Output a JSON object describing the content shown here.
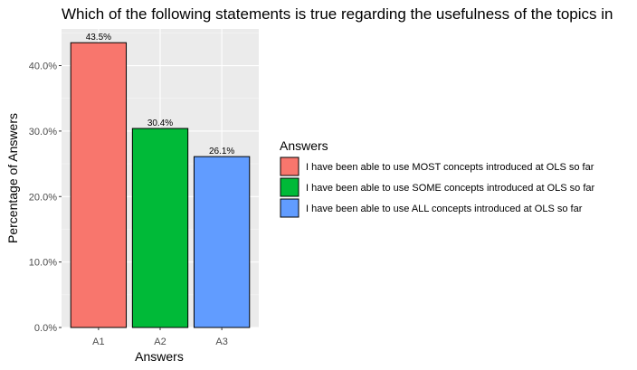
{
  "chart_data": {
    "type": "bar",
    "title": "Which of the following statements is true regarding the usefulness of the topics in",
    "xlabel": "Answers",
    "ylabel": "Percentage of Answers",
    "categories": [
      "A1",
      "A2",
      "A3"
    ],
    "values": [
      43.5,
      30.4,
      26.1
    ],
    "value_labels": [
      "43.5%",
      "30.4%",
      "26.1%"
    ],
    "colors": [
      "#F8766D",
      "#00BA38",
      "#619CFF"
    ],
    "ylim": [
      0,
      45.6
    ],
    "yticks": [
      0,
      10,
      20,
      30,
      40
    ],
    "ytick_labels": [
      "0.0%",
      "10.0%",
      "20.0%",
      "30.0%",
      "40.0%"
    ],
    "grid": true,
    "legend": {
      "title": "Answers",
      "placement": "right",
      "entries": [
        "I have been able to use MOST concepts introduced at OLS so far",
        "I have been able to use SOME concepts introduced at OLS so far",
        "I have been able to use ALL concepts introduced at OLS so far"
      ]
    }
  }
}
